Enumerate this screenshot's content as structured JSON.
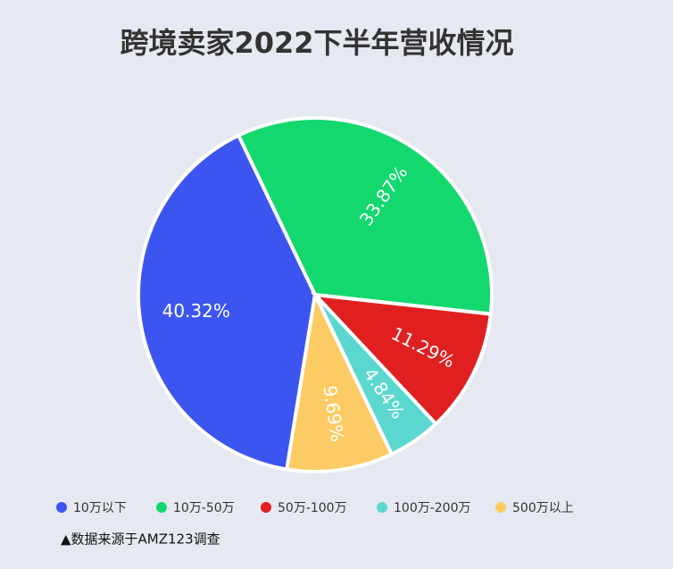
{
  "chart_data": {
    "type": "pie",
    "title": "跨境卖家2022下半年营收情况",
    "categories": [
      "10万以下",
      "10万-50万",
      "50万-100万",
      "100万-200万",
      "500万以上"
    ],
    "values": [
      40.32,
      33.87,
      11.29,
      4.84,
      9.69
    ],
    "value_labels": [
      "40.32%",
      "33.87%",
      "11.29%",
      "4.84%",
      "9.69%"
    ],
    "colors": [
      "#3d55f0",
      "#13d86e",
      "#e02020",
      "#5ad8cf",
      "#fccb64"
    ],
    "note": "▲数据来源于AMZ123调查"
  }
}
